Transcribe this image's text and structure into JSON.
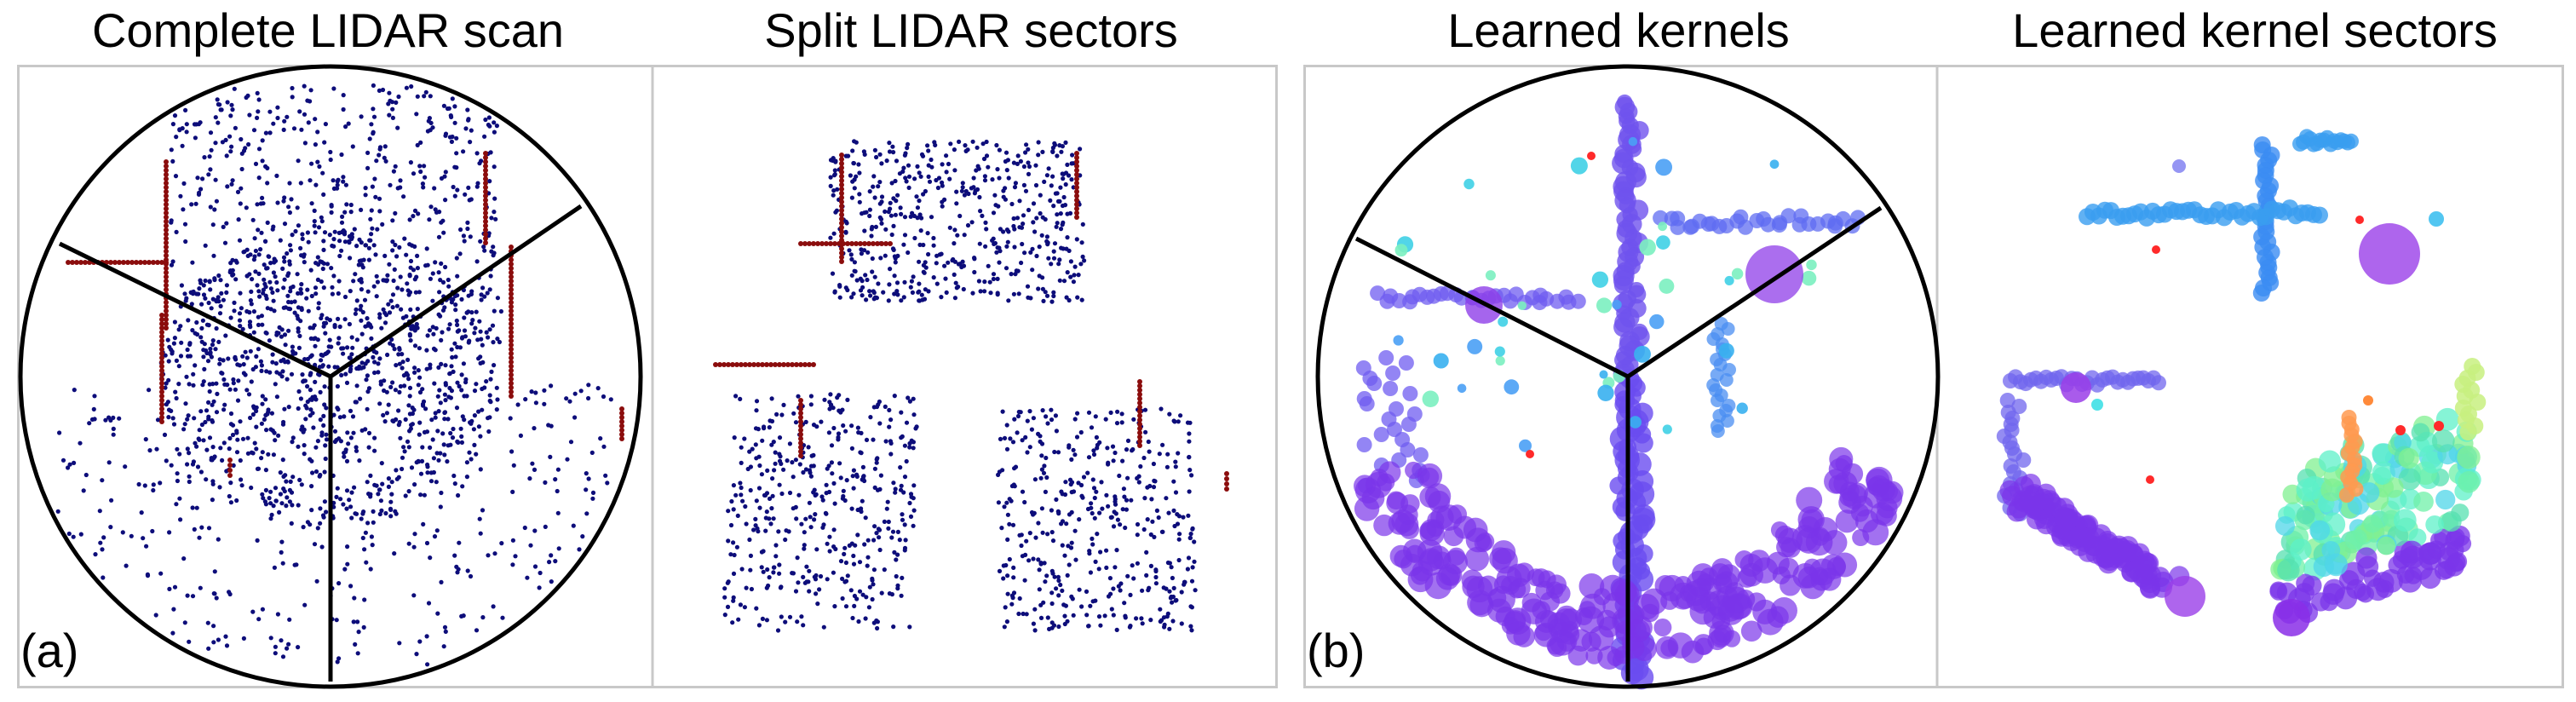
{
  "titles": {
    "complete_scan": "Complete LIDAR scan",
    "split_sectors": "Split LIDAR sectors",
    "learned_kernels": "Learned kernels",
    "learned_kernel_sectors": "Learned kernel sectors"
  },
  "labels": {
    "a": "(a)",
    "b": "(b)"
  },
  "colors": {
    "points": "#0d0d7a",
    "wall_points": "#8b0d0d",
    "outline": "#000000",
    "frame": "#c8c8c8"
  },
  "legend_note": ""
}
